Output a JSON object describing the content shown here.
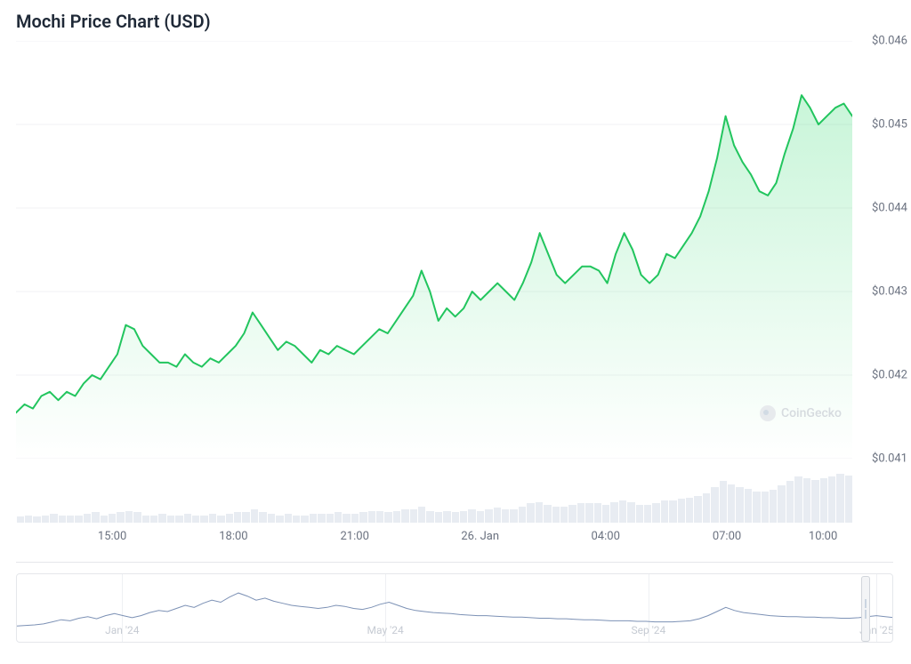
{
  "title": "Mochi Price Chart (USD)",
  "watermark": "CoinGecko",
  "main_chart": {
    "type": "area",
    "line_color": "#22c55e",
    "line_width": 2,
    "fill_top_color": "rgba(74,222,128,0.30)",
    "fill_bottom_color": "rgba(74,222,128,0.00)",
    "background_color": "#ffffff",
    "grid_color": "#f1f2f4",
    "ylim": [
      0.041,
      0.046
    ],
    "y_ticks": [
      0.041,
      0.042,
      0.043,
      0.044,
      0.045,
      0.046
    ],
    "y_tick_labels": [
      "$0.041",
      "$0.042",
      "$0.043",
      "$0.044",
      "$0.045",
      "$0.046"
    ],
    "y_label_fontsize": 13,
    "y_label_color": "#6b7280",
    "x_label_fontsize": 13,
    "x_label_color": "#6b7280",
    "x_ticks": [
      {
        "pos": 0.115,
        "label": "15:00"
      },
      {
        "pos": 0.26,
        "label": "18:00"
      },
      {
        "pos": 0.405,
        "label": "21:00"
      },
      {
        "pos": 0.555,
        "label": "26. Jan"
      },
      {
        "pos": 0.705,
        "label": "04:00"
      },
      {
        "pos": 0.85,
        "label": "07:00"
      },
      {
        "pos": 0.965,
        "label": "10:00"
      }
    ],
    "series": [
      0.04155,
      0.04165,
      0.0416,
      0.04175,
      0.0418,
      0.0417,
      0.0418,
      0.04175,
      0.0419,
      0.042,
      0.04195,
      0.0421,
      0.04225,
      0.0426,
      0.04255,
      0.04235,
      0.04225,
      0.04215,
      0.04215,
      0.0421,
      0.04225,
      0.04215,
      0.0421,
      0.0422,
      0.04215,
      0.04225,
      0.04235,
      0.0425,
      0.04275,
      0.0426,
      0.04245,
      0.0423,
      0.0424,
      0.04235,
      0.04225,
      0.04215,
      0.0423,
      0.04225,
      0.04235,
      0.0423,
      0.04225,
      0.04235,
      0.04245,
      0.04255,
      0.0425,
      0.04265,
      0.0428,
      0.04295,
      0.04325,
      0.043,
      0.04265,
      0.0428,
      0.0427,
      0.0428,
      0.043,
      0.0429,
      0.043,
      0.0431,
      0.043,
      0.0429,
      0.0431,
      0.04335,
      0.0437,
      0.04345,
      0.0432,
      0.0431,
      0.0432,
      0.0433,
      0.0433,
      0.04325,
      0.0431,
      0.04345,
      0.0437,
      0.0435,
      0.0432,
      0.0431,
      0.0432,
      0.04345,
      0.0434,
      0.04355,
      0.0437,
      0.0439,
      0.0442,
      0.0446,
      0.0451,
      0.04475,
      0.04455,
      0.0444,
      0.0442,
      0.04415,
      0.0443,
      0.04465,
      0.04495,
      0.04535,
      0.0452,
      0.045,
      0.0451,
      0.0452,
      0.04525,
      0.0451
    ]
  },
  "volume_chart": {
    "type": "bar",
    "bar_color": "#e8ecf2",
    "values": [
      4,
      5,
      4,
      5,
      6,
      5,
      5,
      5,
      6,
      7,
      5,
      6,
      7,
      8,
      7,
      5,
      5,
      6,
      5,
      5,
      6,
      5,
      5,
      6,
      5,
      6,
      7,
      7,
      9,
      7,
      6,
      5,
      6,
      5,
      5,
      6,
      6,
      6,
      7,
      6,
      6,
      7,
      8,
      8,
      7,
      8,
      9,
      9,
      11,
      8,
      7,
      8,
      7,
      8,
      9,
      8,
      9,
      10,
      9,
      9,
      11,
      13,
      14,
      12,
      11,
      11,
      12,
      13,
      13,
      13,
      12,
      14,
      15,
      14,
      12,
      12,
      13,
      15,
      15,
      16,
      17,
      18,
      20,
      24,
      28,
      26,
      24,
      23,
      21,
      21,
      22,
      25,
      28,
      31,
      30,
      29,
      30,
      31,
      33,
      32
    ],
    "max": 36
  },
  "range_selector": {
    "type": "line",
    "line_color": "#7c91b5",
    "line_width": 1,
    "border_color": "#e5e7eb",
    "x_ticks": [
      {
        "pos": 0.12,
        "label": "Jan '24"
      },
      {
        "pos": 0.42,
        "label": "May '24"
      },
      {
        "pos": 0.72,
        "label": "Sep '24"
      },
      {
        "pos": 0.98,
        "label": "Jan '25"
      }
    ],
    "handle_position": 0.968,
    "series": [
      0.1,
      0.11,
      0.12,
      0.14,
      0.18,
      0.22,
      0.2,
      0.25,
      0.28,
      0.24,
      0.3,
      0.34,
      0.3,
      0.26,
      0.3,
      0.36,
      0.4,
      0.38,
      0.44,
      0.5,
      0.46,
      0.54,
      0.6,
      0.56,
      0.66,
      0.74,
      0.68,
      0.6,
      0.64,
      0.58,
      0.54,
      0.5,
      0.48,
      0.46,
      0.44,
      0.46,
      0.5,
      0.48,
      0.44,
      0.42,
      0.46,
      0.52,
      0.56,
      0.5,
      0.44,
      0.4,
      0.38,
      0.36,
      0.35,
      0.34,
      0.32,
      0.31,
      0.3,
      0.3,
      0.29,
      0.28,
      0.27,
      0.27,
      0.26,
      0.25,
      0.25,
      0.24,
      0.24,
      0.23,
      0.22,
      0.22,
      0.21,
      0.2,
      0.2,
      0.2,
      0.19,
      0.19,
      0.18,
      0.18,
      0.18,
      0.19,
      0.2,
      0.24,
      0.3,
      0.38,
      0.46,
      0.4,
      0.36,
      0.34,
      0.32,
      0.3,
      0.29,
      0.28,
      0.28,
      0.27,
      0.27,
      0.26,
      0.26,
      0.25,
      0.25,
      0.26,
      0.28,
      0.3,
      0.28,
      0.26
    ]
  }
}
